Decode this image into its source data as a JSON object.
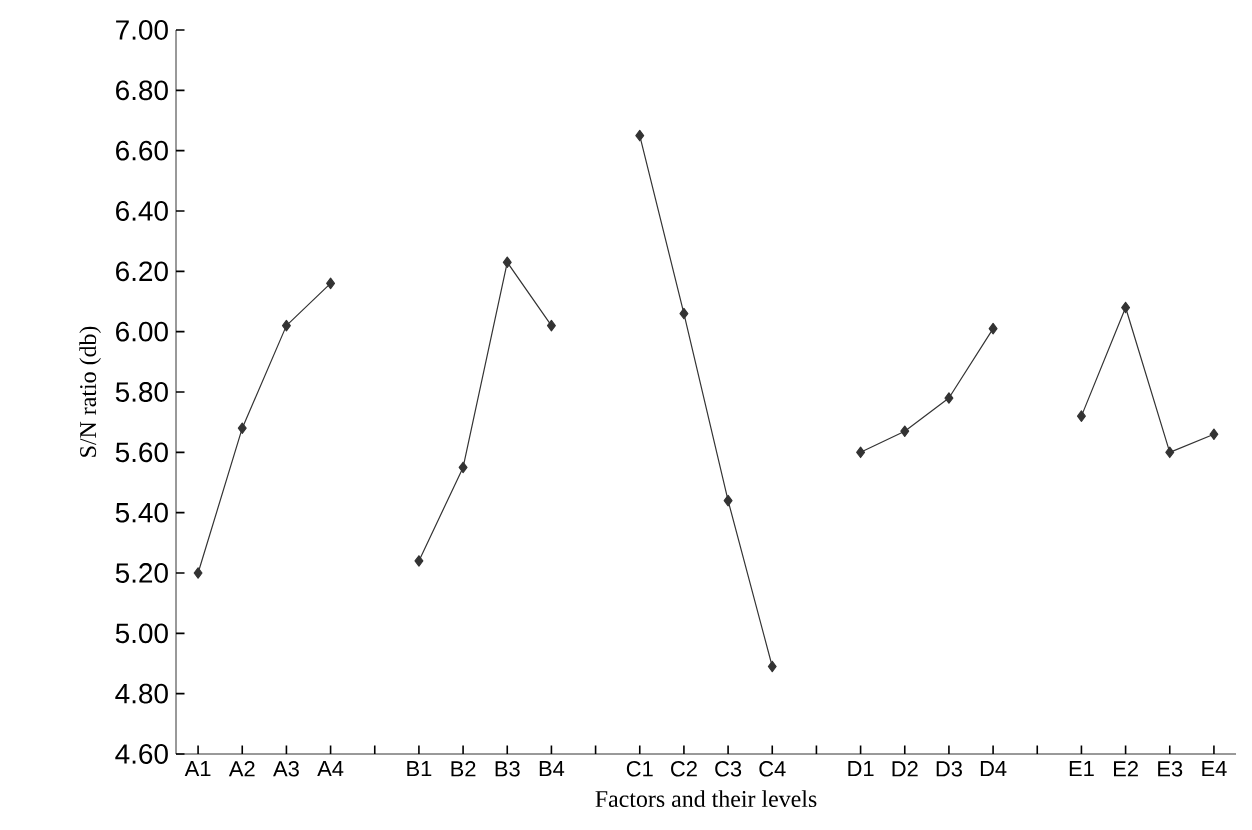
{
  "chart_data": {
    "type": "line",
    "xlabel": "Factors and their levels",
    "ylabel": "S/N ratio (db)",
    "categories": [
      "A1",
      "A2",
      "A3",
      "A4",
      null,
      "B1",
      "B2",
      "B3",
      "B4",
      null,
      "C1",
      "C2",
      "C3",
      "C4",
      null,
      "D1",
      "D2",
      "D3",
      "D4",
      null,
      "E1",
      "E2",
      "E3",
      "E4"
    ],
    "values": [
      5.2,
      5.68,
      6.02,
      6.16,
      null,
      5.24,
      5.55,
      6.23,
      6.02,
      null,
      6.65,
      6.06,
      5.44,
      4.89,
      null,
      5.6,
      5.67,
      5.78,
      6.01,
      null,
      5.72,
      6.08,
      5.6,
      5.66
    ],
    "color": "#333333",
    "marker": "diamond",
    "line_style": "solid",
    "ylim": [
      4.6,
      7.0
    ],
    "yticks": [
      {
        "value": 4.6,
        "label": "4.60"
      },
      {
        "value": 4.8,
        "label": "4.80"
      },
      {
        "value": 5.0,
        "label": "5.00"
      },
      {
        "value": 5.2,
        "label": "5.20"
      },
      {
        "value": 5.4,
        "label": "5.40"
      },
      {
        "value": 5.6,
        "label": "5.60"
      },
      {
        "value": 5.8,
        "label": "5.80"
      },
      {
        "value": 6.0,
        "label": "6.00"
      },
      {
        "value": 6.2,
        "label": "6.20"
      },
      {
        "value": 6.4,
        "label": "6.40"
      },
      {
        "value": 6.6,
        "label": "6.60"
      },
      {
        "value": 6.8,
        "label": "6.80"
      },
      {
        "value": 7.0,
        "label": "7.00"
      }
    ],
    "grid": false
  }
}
